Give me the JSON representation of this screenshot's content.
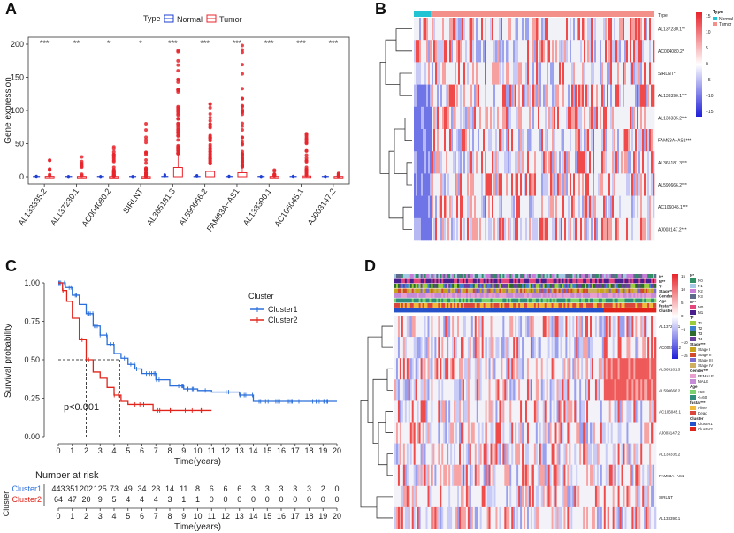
{
  "panels": {
    "a": "A",
    "b": "B",
    "c": "C",
    "d": "D"
  },
  "chart_data": [
    {
      "id": "A",
      "type": "boxplot",
      "ylabel": "Gene expression",
      "legend_title": "Type",
      "legend": [
        {
          "name": "Normal",
          "color": "#1f3fd1"
        },
        {
          "name": "Tumor",
          "color": "#e8242b"
        }
      ],
      "ylim": [
        0,
        200
      ],
      "yticks": [
        "0",
        "50",
        "100",
        "150",
        "200"
      ],
      "categories": [
        "AL133335.2",
        "AL137230.1",
        "AC004080.2",
        "SIRLNT",
        "AL365181.3",
        "AL590666.2",
        "FAM83A−AS1",
        "AL133390.1",
        "AC106045.1",
        "AJ003147.2"
      ],
      "significance": [
        "***",
        "**",
        "*",
        "*",
        "***",
        "***",
        "***",
        "***",
        "***",
        "***"
      ],
      "tumor_box_q3": [
        0.5,
        0.4,
        0.3,
        0.2,
        14,
        8,
        6,
        0.4,
        1,
        0.4
      ],
      "tumor_whisker_max": [
        1.5,
        1,
        0.8,
        0.5,
        35,
        20,
        15,
        1,
        2.5,
        1
      ],
      "tumor_outlier_max": [
        25,
        30,
        45,
        80,
        190,
        110,
        198,
        10,
        65,
        5
      ],
      "normal_outlier_max": [
        1,
        0.5,
        0.5,
        0.5,
        3,
        2,
        1,
        0.5,
        1,
        0.5
      ]
    },
    {
      "id": "B",
      "type": "heatmap",
      "annotation_label": "Type",
      "annotation_legend": [
        {
          "name": "Normal",
          "color": "#22c4d4"
        },
        {
          "name": "Tumor",
          "color": "#f4908a"
        }
      ],
      "scale_ticks": [
        "15",
        "10",
        "5",
        "0",
        "−5",
        "−10",
        "−15"
      ],
      "rows": [
        "AL137230.1**",
        "AC004080.2*",
        "SIRLNT*",
        "AL133390.1***",
        "AL133335.2***",
        "FAM83A−AS1***",
        "AL365181.3***",
        "AL590666.2***",
        "AC106045.1***",
        "AJ003147.2***"
      ],
      "normal_fraction": 0.07
    },
    {
      "id": "C",
      "type": "survival",
      "ylabel": "Survival probability",
      "xlabel": "Time(years)",
      "xticks": [
        "0",
        "1",
        "2",
        "3",
        "4",
        "5",
        "6",
        "7",
        "8",
        "9",
        "10",
        "11",
        "12",
        "13",
        "14",
        "15",
        "16",
        "17",
        "18",
        "19",
        "20"
      ],
      "yticks": [
        "0.00",
        "0.25",
        "0.50",
        "0.75",
        "1.00"
      ],
      "legend_title": "Cluster",
      "pvalue": "p<0.001",
      "series": [
        {
          "name": "Cluster1",
          "color": "#2a6fdb",
          "points": [
            [
              0,
              1
            ],
            [
              0.5,
              0.97
            ],
            [
              1,
              0.92
            ],
            [
              1.5,
              0.86
            ],
            [
              2,
              0.8
            ],
            [
              2.5,
              0.72
            ],
            [
              3,
              0.66
            ],
            [
              3.5,
              0.6
            ],
            [
              4,
              0.54
            ],
            [
              4.5,
              0.51
            ],
            [
              5,
              0.47
            ],
            [
              5.5,
              0.44
            ],
            [
              6,
              0.41
            ],
            [
              7,
              0.37
            ],
            [
              8,
              0.33
            ],
            [
              9,
              0.31
            ],
            [
              10,
              0.3
            ],
            [
              11,
              0.29
            ],
            [
              13,
              0.27
            ],
            [
              13.8,
              0.27
            ],
            [
              14,
              0.23
            ],
            [
              20,
              0.23
            ]
          ]
        },
        {
          "name": "Cluster2",
          "color": "#e0241b",
          "points": [
            [
              0,
              1
            ],
            [
              0.3,
              0.95
            ],
            [
              0.6,
              0.88
            ],
            [
              1,
              0.77
            ],
            [
              1.5,
              0.63
            ],
            [
              2,
              0.5
            ],
            [
              2.5,
              0.42
            ],
            [
              3,
              0.38
            ],
            [
              3.5,
              0.32
            ],
            [
              4,
              0.27
            ],
            [
              4.5,
              0.23
            ],
            [
              5,
              0.21
            ],
            [
              6,
              0.21
            ],
            [
              6.8,
              0.17
            ],
            [
              11,
              0.17
            ]
          ]
        }
      ],
      "median": [
        {
          "x": 2.0,
          "y": 0.5
        },
        {
          "x": 4.4,
          "y": 0.5
        }
      ]
    },
    {
      "id": "C-risk",
      "type": "table",
      "title": "Number at risk",
      "side_label": "Cluster",
      "rows": [
        {
          "name": "Cluster1",
          "color": "#2a6fdb",
          "values": [
            "443",
            "351",
            "202",
            "125",
            "73",
            "49",
            "34",
            "23",
            "14",
            "11",
            "8",
            "6",
            "6",
            "6",
            "3",
            "3",
            "3",
            "3",
            "3",
            "2",
            "0"
          ]
        },
        {
          "name": "Cluster2",
          "color": "#e0241b",
          "values": [
            "64",
            "47",
            "20",
            "9",
            "5",
            "4",
            "4",
            "4",
            "3",
            "1",
            "1",
            "0",
            "0",
            "0",
            "0",
            "0",
            "0",
            "0",
            "0",
            "0",
            "0"
          ]
        }
      ],
      "xticks": [
        "0",
        "1",
        "2",
        "3",
        "4",
        "5",
        "6",
        "7",
        "8",
        "9",
        "10",
        "11",
        "12",
        "13",
        "14",
        "15",
        "16",
        "17",
        "18",
        "19",
        "20"
      ],
      "xlabel": "Time(years)"
    },
    {
      "id": "D",
      "type": "heatmap",
      "annotation_tracks": [
        "N*",
        "M**",
        "T*",
        "Stage***",
        "Gender***",
        "Age",
        "fustat***",
        "Cluster"
      ],
      "scale_ticks": [
        "15",
        "10",
        "5",
        "0",
        "−5",
        "−10",
        "−15"
      ],
      "rows": [
        "AL137230.1",
        "AC004080.2",
        "AL365181.3",
        "AL590666.2",
        "AC106045.1",
        "AJ003147.2",
        "AL133335.2",
        "FAM83A−AS1",
        "SIRLNT",
        "AL133390.1"
      ],
      "legends": [
        {
          "title": "N*",
          "items": [
            {
              "name": "N0",
              "color": "#2f8f64"
            },
            {
              "name": "N1",
              "color": "#a5c8e4"
            },
            {
              "name": "N2",
              "color": "#c97bd8"
            },
            {
              "name": "N3",
              "color": "#5e6a8c"
            }
          ]
        },
        {
          "title": "M**",
          "items": [
            {
              "name": "M0",
              "color": "#e6457c"
            },
            {
              "name": "M1",
              "color": "#4b1e8e"
            }
          ]
        },
        {
          "title": "T*",
          "items": [
            {
              "name": "T1",
              "color": "#9ccc3c"
            },
            {
              "name": "T2",
              "color": "#3e7fd0"
            },
            {
              "name": "T3",
              "color": "#2c6b2c"
            },
            {
              "name": "T4",
              "color": "#6b3fa0"
            }
          ]
        },
        {
          "title": "Stage***",
          "items": [
            {
              "name": "Stage I",
              "color": "#c8a21c"
            },
            {
              "name": "Stage II",
              "color": "#d24a2b"
            },
            {
              "name": "Stage III",
              "color": "#7a6bd1"
            },
            {
              "name": "Stage IV",
              "color": "#cfae5f"
            }
          ]
        },
        {
          "title": "Gender***",
          "items": [
            {
              "name": "FEMALE",
              "color": "#e99fd0"
            },
            {
              "name": "MALE",
              "color": "#c58bd6"
            }
          ]
        },
        {
          "title": "Age",
          "items": [
            {
              "name": ">60",
              "color": "#79d16b"
            },
            {
              "name": "<=60",
              "color": "#2f8c7a"
            }
          ]
        },
        {
          "title": "fustat***",
          "items": [
            {
              "name": "Alive",
              "color": "#f0b93a"
            },
            {
              "name": "Dead",
              "color": "#d9463c"
            }
          ]
        },
        {
          "title": "Cluster",
          "items": [
            {
              "name": "Cluster1",
              "color": "#2451c9"
            },
            {
              "name": "Cluster2",
              "color": "#e0241b"
            }
          ]
        }
      ]
    }
  ]
}
